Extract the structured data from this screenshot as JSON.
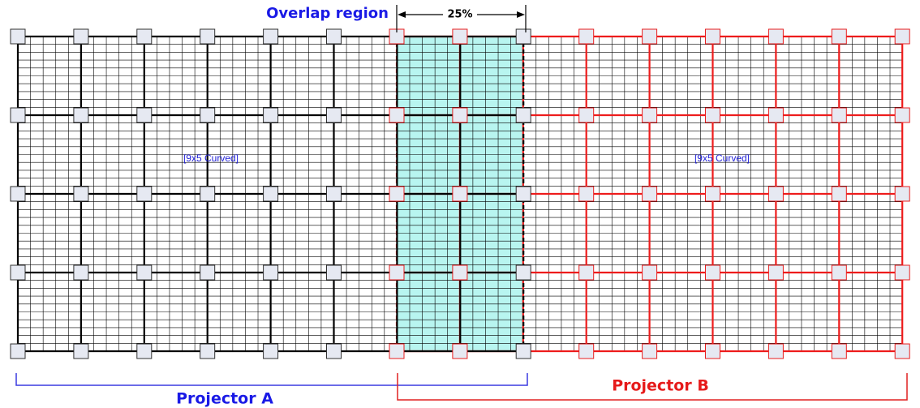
{
  "labels": {
    "overlap": "Overlap region",
    "percent": "25%",
    "grid_a": "[9x5 Curved]",
    "grid_b": "[9x5 Curved]",
    "projector_a": "Projector A",
    "projector_b": "Projector B"
  }
}
